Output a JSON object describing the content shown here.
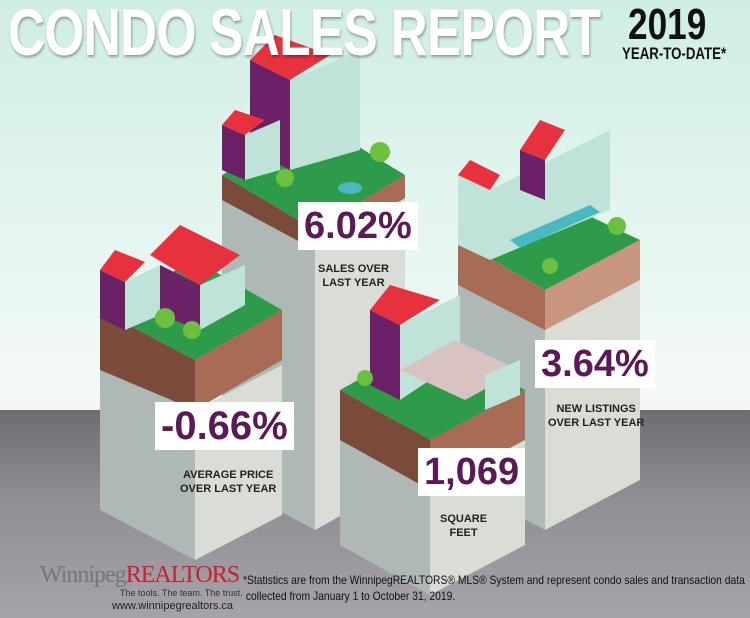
{
  "header": {
    "title": "CONDO SALES REPORT",
    "year": "2019",
    "subtitle": "YEAR-TO-DATE*"
  },
  "stats": [
    {
      "value": "6.02%",
      "caption_line1": "SALES OVER",
      "caption_line2": "LAST YEAR"
    },
    {
      "value": "-0.66%",
      "caption_line1": "AVERAGE PRICE",
      "caption_line2": "OVER LAST YEAR"
    },
    {
      "value": "3.64%",
      "caption_line1": "NEW LISTINGS",
      "caption_line2": "OVER LAST YEAR"
    },
    {
      "value": "1,069",
      "caption_line1": "SQUARE",
      "caption_line2": "FEET"
    }
  ],
  "footer": {
    "logo": "WinnipegREALTORS",
    "tagline": "The tools. The team. The trust.",
    "url": "www.winnipegrealtors.ca",
    "note_line1": "*Statistics are from the WinnipegREALTORS® MLS® System and represent condo sales and transaction data",
    "note_line2": "collected from January 1 to October 31, 2019."
  },
  "colors": {
    "accent": "#5a1a55",
    "roof": "#e8313f",
    "grass": "#2e9b4a",
    "soil": "#7a4a3a",
    "pillar": "#c9cfcb"
  }
}
